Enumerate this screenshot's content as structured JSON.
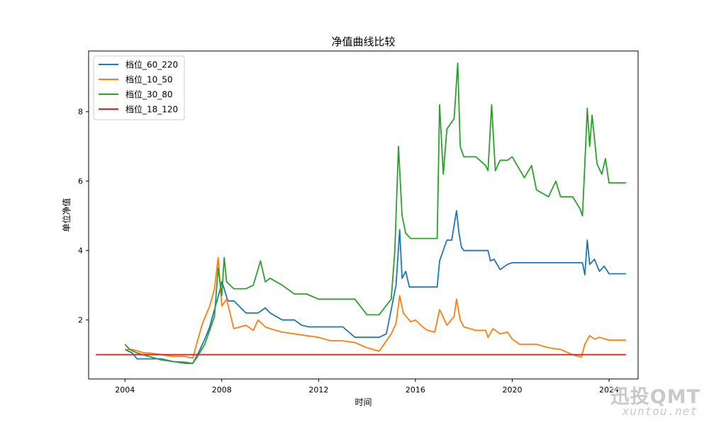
{
  "chart_data": {
    "type": "line",
    "title": "净值曲线比较",
    "xlabel": "时间",
    "ylabel": "单位净值",
    "xlim": [
      2002.5,
      2025.2
    ],
    "ylim": [
      0.3,
      9.75
    ],
    "x_ticks": [
      2004,
      2008,
      2012,
      2016,
      2020,
      2024
    ],
    "y_ticks": [
      2,
      4,
      6,
      8
    ],
    "grid": false,
    "legend_position": "top-left",
    "series": [
      {
        "name": "档位_60_220",
        "color": "#1f77b4",
        "x": [
          2004.0,
          2004.3,
          2004.5,
          2005.0,
          2005.5,
          2006.0,
          2006.5,
          2006.8,
          2007.0,
          2007.3,
          2007.5,
          2007.7,
          2007.9,
          2008.0,
          2008.1,
          2008.25,
          2008.5,
          2009.0,
          2009.5,
          2009.8,
          2010.0,
          2010.5,
          2011.0,
          2011.3,
          2011.6,
          2012.0,
          2012.5,
          2013.0,
          2013.5,
          2014.0,
          2014.5,
          2014.8,
          2015.0,
          2015.2,
          2015.35,
          2015.45,
          2015.6,
          2015.75,
          2016.0,
          2016.5,
          2016.9,
          2017.0,
          2017.3,
          2017.5,
          2017.7,
          2017.8,
          2017.9,
          2018.0,
          2018.5,
          2019.0,
          2019.1,
          2019.25,
          2019.5,
          2019.8,
          2020.0,
          2020.5,
          2021.0,
          2021.5,
          2022.0,
          2022.5,
          2022.9,
          2023.0,
          2023.1,
          2023.2,
          2023.4,
          2023.6,
          2023.8,
          2024.0,
          2024.7
        ],
        "values": [
          1.15,
          1.05,
          0.88,
          0.88,
          0.88,
          0.8,
          0.78,
          0.75,
          1.0,
          1.45,
          1.8,
          2.3,
          2.8,
          3.1,
          2.9,
          2.55,
          2.55,
          2.2,
          2.2,
          2.35,
          2.2,
          2.0,
          2.0,
          1.85,
          1.8,
          1.8,
          1.8,
          1.8,
          1.5,
          1.5,
          1.5,
          1.6,
          2.3,
          3.0,
          4.6,
          3.2,
          3.4,
          2.95,
          2.95,
          2.95,
          2.95,
          3.7,
          4.3,
          4.3,
          5.15,
          4.5,
          4.1,
          4.0,
          4.0,
          4.0,
          3.7,
          3.75,
          3.45,
          3.6,
          3.65,
          3.65,
          3.65,
          3.65,
          3.65,
          3.65,
          3.65,
          3.3,
          4.3,
          3.6,
          3.75,
          3.4,
          3.55,
          3.33,
          3.33
        ]
      },
      {
        "name": "档位_10_50",
        "color": "#ff7f0e",
        "x": [
          2004.0,
          2004.3,
          2004.8,
          2005.0,
          2005.5,
          2006.0,
          2006.5,
          2006.8,
          2007.0,
          2007.2,
          2007.5,
          2007.7,
          2007.85,
          2008.0,
          2008.2,
          2008.5,
          2009.0,
          2009.3,
          2009.5,
          2009.8,
          2010.0,
          2010.5,
          2011.0,
          2011.5,
          2012.0,
          2012.5,
          2013.0,
          2013.5,
          2014.0,
          2014.5,
          2015.0,
          2015.2,
          2015.35,
          2015.5,
          2015.8,
          2016.0,
          2016.3,
          2016.5,
          2016.8,
          2017.0,
          2017.3,
          2017.6,
          2017.7,
          2017.85,
          2018.0,
          2018.5,
          2018.9,
          2019.0,
          2019.2,
          2019.5,
          2019.8,
          2020.0,
          2020.3,
          2020.5,
          2021.0,
          2021.5,
          2022.0,
          2022.5,
          2022.85,
          2023.0,
          2023.2,
          2023.4,
          2023.6,
          2024.0,
          2024.7
        ],
        "values": [
          1.15,
          1.15,
          1.05,
          1.05,
          1.0,
          0.95,
          0.95,
          0.9,
          1.4,
          1.9,
          2.4,
          2.9,
          3.8,
          2.4,
          2.6,
          1.75,
          1.85,
          1.7,
          2.0,
          1.8,
          1.75,
          1.65,
          1.6,
          1.55,
          1.5,
          1.4,
          1.4,
          1.35,
          1.2,
          1.1,
          1.6,
          1.9,
          2.7,
          2.2,
          1.95,
          2.0,
          1.8,
          1.7,
          1.65,
          2.3,
          1.85,
          2.1,
          2.6,
          2.0,
          1.8,
          1.7,
          1.7,
          1.5,
          1.75,
          1.6,
          1.65,
          1.45,
          1.3,
          1.3,
          1.3,
          1.2,
          1.15,
          1.0,
          0.93,
          1.3,
          1.55,
          1.45,
          1.5,
          1.42,
          1.42
        ]
      },
      {
        "name": "档位_30_80",
        "color": "#2ca02c",
        "x": [
          2004.0,
          2004.2,
          2004.5,
          2005.0,
          2005.5,
          2006.0,
          2006.5,
          2006.8,
          2007.0,
          2007.3,
          2007.5,
          2007.7,
          2007.85,
          2008.0,
          2008.1,
          2008.2,
          2008.5,
          2009.0,
          2009.3,
          2009.6,
          2009.8,
          2010.0,
          2010.5,
          2011.0,
          2011.5,
          2012.0,
          2012.5,
          2013.0,
          2013.5,
          2014.0,
          2014.5,
          2015.0,
          2015.15,
          2015.3,
          2015.45,
          2015.6,
          2015.8,
          2016.0,
          2016.5,
          2016.9,
          2017.0,
          2017.15,
          2017.3,
          2017.6,
          2017.75,
          2017.85,
          2018.0,
          2018.5,
          2018.9,
          2019.0,
          2019.15,
          2019.3,
          2019.5,
          2019.8,
          2020.0,
          2020.5,
          2020.8,
          2021.0,
          2021.5,
          2021.8,
          2022.0,
          2022.5,
          2022.8,
          2022.9,
          2023.0,
          2023.1,
          2023.2,
          2023.3,
          2023.5,
          2023.7,
          2023.85,
          2024.0,
          2024.7
        ],
        "values": [
          1.3,
          1.15,
          1.05,
          0.95,
          0.85,
          0.8,
          0.75,
          0.75,
          0.95,
          1.3,
          1.7,
          2.1,
          3.5,
          2.7,
          3.8,
          3.1,
          2.9,
          2.9,
          3.0,
          3.7,
          3.1,
          3.2,
          3.0,
          2.75,
          2.75,
          2.6,
          2.6,
          2.6,
          2.6,
          2.15,
          2.15,
          2.6,
          4.0,
          7.0,
          5.0,
          4.5,
          4.35,
          4.35,
          4.35,
          4.35,
          8.2,
          6.2,
          7.5,
          7.8,
          9.4,
          7.0,
          6.7,
          6.7,
          6.45,
          6.3,
          8.2,
          6.3,
          6.6,
          6.6,
          6.7,
          6.1,
          6.45,
          5.75,
          5.55,
          6.0,
          5.55,
          5.55,
          5.2,
          5.0,
          6.5,
          8.1,
          7.0,
          7.9,
          6.5,
          6.2,
          6.65,
          5.95,
          5.95
        ]
      },
      {
        "name": "档位_18_120",
        "color": "#d62728",
        "x": [
          2002.8,
          2024.7
        ],
        "values": [
          1.0,
          1.0
        ]
      }
    ]
  }
}
